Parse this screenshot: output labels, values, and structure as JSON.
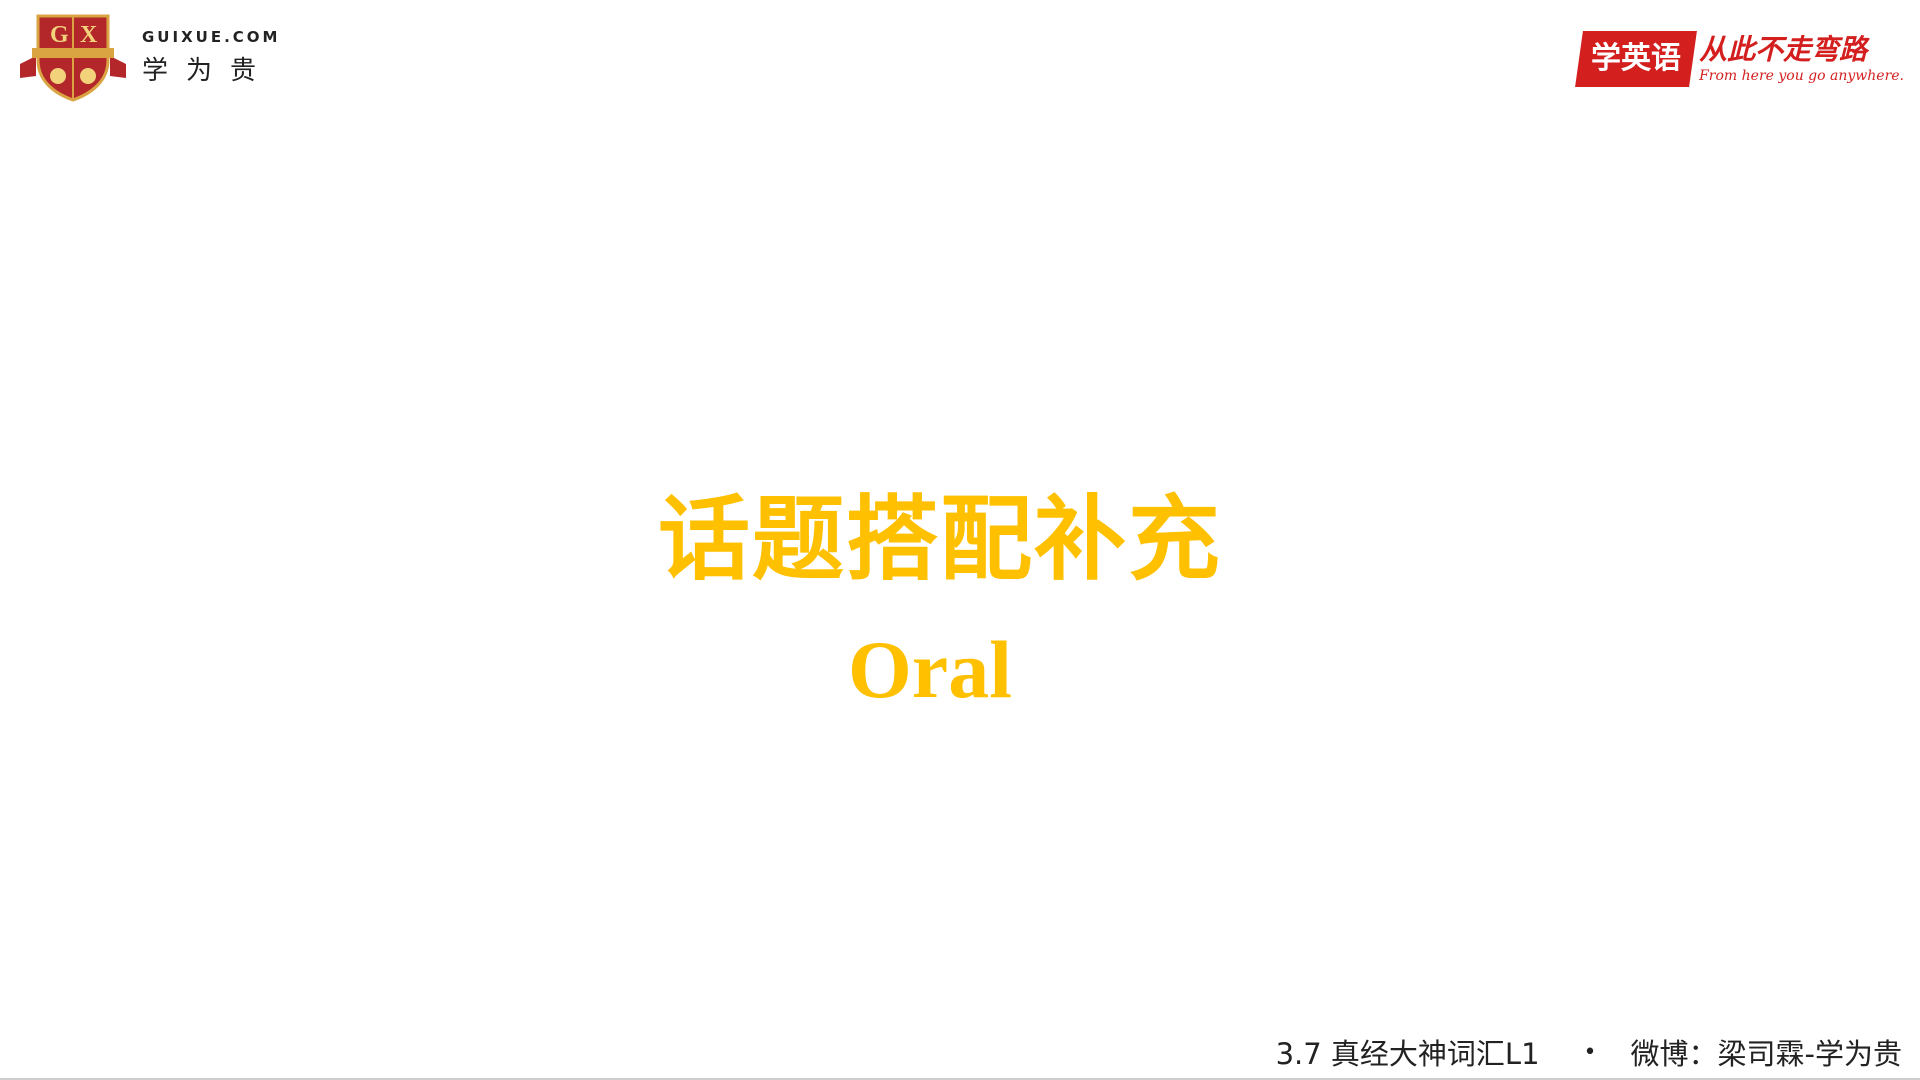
{
  "header": {
    "brand_domain": "GUIXUE.COM",
    "brand_name": "学为贵",
    "slogan_box": "学英语",
    "slogan_main": "从此不走弯路",
    "slogan_sub": "From here you go anywhere."
  },
  "slide": {
    "title_cn": "话题搭配补充",
    "title_en": "Oral"
  },
  "footer": {
    "course": "3.7 真经大神词汇L1",
    "separator": "•",
    "weibo": "微博：梁司霖-学为贵"
  },
  "colors": {
    "title": "#ffc000",
    "brand_red": "#d41f1f",
    "crest_red": "#b3262a",
    "crest_gold": "#d9a441"
  },
  "icons": {
    "crest": "gx-crest-logo"
  }
}
